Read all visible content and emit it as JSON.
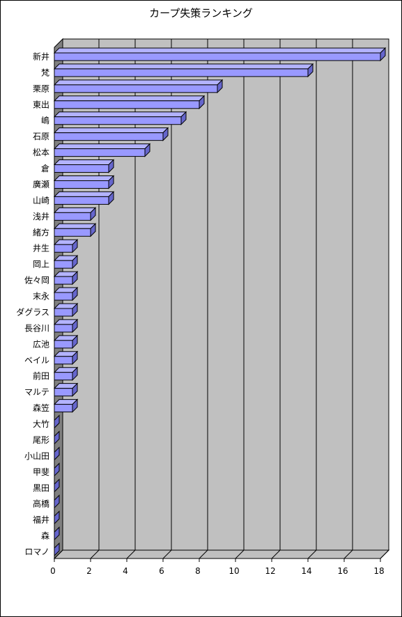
{
  "chart_data": {
    "type": "bar",
    "orientation": "horizontal",
    "title": "カープ失策ランキング",
    "categories": [
      "新井",
      "梵",
      "栗原",
      "東出",
      "嶋",
      "石原",
      "松本",
      "倉",
      "廣瀬",
      "山崎",
      "浅井",
      "緒方",
      "井生",
      "岡上",
      "佐々岡",
      "末永",
      "ダグラス",
      "長谷川",
      "広池",
      "ベイル",
      "前田",
      "マルテ",
      "森笠",
      "大竹",
      "尾形",
      "小山田",
      "甲斐",
      "黒田",
      "高橋",
      "福井",
      "森",
      "ロマノ"
    ],
    "values": [
      18,
      14,
      9,
      8,
      7,
      6,
      5,
      3,
      3,
      3,
      2,
      2,
      1,
      1,
      1,
      1,
      1,
      1,
      1,
      1,
      1,
      1,
      1,
      0,
      0,
      0,
      0,
      0,
      0,
      0,
      0,
      0
    ],
    "xlim": [
      0,
      18
    ],
    "xticks": [
      "0",
      "2",
      "4",
      "6",
      "8",
      "10",
      "12",
      "14",
      "16",
      "18"
    ],
    "grid": true,
    "legend": "none",
    "bar_color": "#9999ff",
    "wall_color": "#c0c0c0",
    "floor_color": "#808080"
  }
}
